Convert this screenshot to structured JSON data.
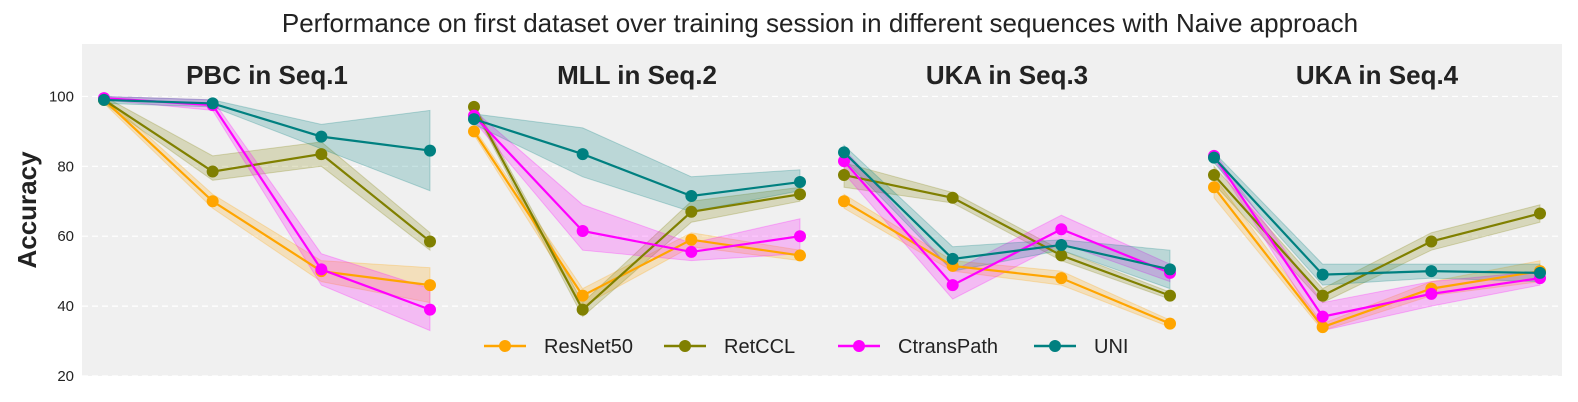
{
  "chart_data": {
    "type": "line",
    "title": "Performance on first dataset over training session in different sequences with Naive approach",
    "ylabel": "Accuracy",
    "ylim": [
      20,
      115
    ],
    "yticks": [
      20,
      40,
      60,
      80,
      100
    ],
    "grid": true,
    "legend_position": "lower-center",
    "series_styles": [
      {
        "name": "ResNet50",
        "color": "#FFA500"
      },
      {
        "name": "RetCCL",
        "color": "#808000"
      },
      {
        "name": "CtransPath",
        "color": "#FF00FF"
      },
      {
        "name": "UNI",
        "color": "#008080"
      }
    ],
    "panels": [
      {
        "title": "PBC in Seq.1",
        "x": [
          1,
          2,
          3,
          4
        ],
        "series": [
          {
            "name": "ResNet50",
            "values": [
              99,
              70,
              50,
              46
            ],
            "lower": [
              98,
              68,
              47,
              41
            ],
            "upper": [
              100,
              72,
              53,
              51
            ]
          },
          {
            "name": "RetCCL",
            "values": [
              99,
              78.5,
              83.5,
              58.5
            ],
            "lower": [
              98,
              76,
              80,
              56
            ],
            "upper": [
              100,
              83,
              87,
              61
            ]
          },
          {
            "name": "CtransPath",
            "values": [
              99.5,
              97.5,
              50.5,
              39
            ],
            "lower": [
              99,
              96,
              46,
              33
            ],
            "upper": [
              100,
              99,
              55,
              45
            ]
          },
          {
            "name": "UNI",
            "values": [
              99,
              98,
              88.5,
              84.5
            ],
            "lower": [
              98,
              97,
              85,
              73
            ],
            "upper": [
              100,
              99,
              92,
              96
            ]
          }
        ]
      },
      {
        "title": "MLL in Seq.2",
        "x": [
          1,
          2,
          3,
          4
        ],
        "series": [
          {
            "name": "ResNet50",
            "values": [
              90,
              43,
              59,
              54.5
            ],
            "lower": [
              89,
              40,
              57,
              53
            ],
            "upper": [
              91,
              45,
              61,
              56
            ]
          },
          {
            "name": "RetCCL",
            "values": [
              97,
              39,
              67,
              72
            ],
            "lower": [
              96,
              37,
              64,
              70
            ],
            "upper": [
              98,
              41,
              70,
              74
            ]
          },
          {
            "name": "CtransPath",
            "values": [
              94.5,
              61.5,
              55.5,
              60
            ],
            "lower": [
              93,
              56,
              53,
              55
            ],
            "upper": [
              96,
              69,
              58,
              65
            ]
          },
          {
            "name": "UNI",
            "values": [
              93.5,
              83.5,
              71.5,
              75.5
            ],
            "lower": [
              92,
              77,
              67,
              73
            ],
            "upper": [
              95,
              91,
              77,
              79
            ]
          }
        ]
      },
      {
        "title": "UKA in Seq.3",
        "x": [
          1,
          2,
          3,
          4
        ],
        "series": [
          {
            "name": "ResNet50",
            "values": [
              70,
              51.5,
              48,
              35
            ],
            "lower": [
              68,
              50,
              46,
              34
            ],
            "upper": [
              72,
              53,
              50,
              36
            ]
          },
          {
            "name": "RetCCL",
            "values": [
              77.5,
              71,
              54.5,
              43
            ],
            "lower": [
              74,
              69.5,
              53,
              42
            ],
            "upper": [
              81,
              72.5,
              56,
              44
            ]
          },
          {
            "name": "CtransPath",
            "values": [
              81.5,
              46,
              62,
              49.5
            ],
            "lower": [
              78,
              42,
              58,
              47
            ],
            "upper": [
              85,
              50,
              66,
              52
            ]
          },
          {
            "name": "UNI",
            "values": [
              84,
              53.5,
              57.5,
              50.5
            ],
            "lower": [
              82,
              50,
              56,
              45
            ],
            "upper": [
              86,
              57,
              59,
              56
            ]
          }
        ]
      },
      {
        "title": "UKA in Seq.4",
        "x": [
          1,
          2,
          3,
          4
        ],
        "series": [
          {
            "name": "ResNet50",
            "values": [
              74,
              34,
              45,
              50
            ],
            "lower": [
              71,
              33,
              43,
              47
            ],
            "upper": [
              77,
              35,
              47,
              53
            ]
          },
          {
            "name": "RetCCL",
            "values": [
              77.5,
              43,
              58.5,
              66.5
            ],
            "lower": [
              75,
              41,
              56,
              64
            ],
            "upper": [
              80,
              45,
              61,
              69
            ]
          },
          {
            "name": "CtransPath",
            "values": [
              83,
              37,
              43.5,
              48
            ],
            "lower": [
              82,
              33,
              40,
              46
            ],
            "upper": [
              84,
              41,
              47,
              50
            ]
          },
          {
            "name": "UNI",
            "values": [
              82.5,
              49,
              50,
              49.5
            ],
            "lower": [
              81,
              46,
              48,
              47
            ],
            "upper": [
              84,
              52,
              52,
              52
            ]
          }
        ]
      }
    ]
  }
}
